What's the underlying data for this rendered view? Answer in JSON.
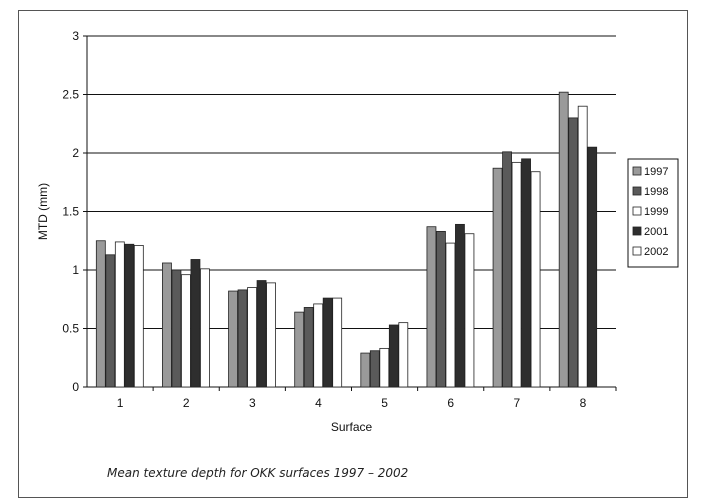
{
  "caption": "Mean texture depth for OKK surfaces 1997 – 2002",
  "chart_data": {
    "type": "bar",
    "title": "",
    "xlabel": "Surface",
    "ylabel": "MTD (mm)",
    "ylim": [
      0,
      3
    ],
    "yticks": [
      "0",
      "0.5",
      "1",
      "1.5",
      "2",
      "2.5",
      "3"
    ],
    "grid": true,
    "legend_position": "right",
    "categories": [
      "1",
      "2",
      "3",
      "4",
      "5",
      "6",
      "7",
      "8"
    ],
    "series": [
      {
        "name": "1997",
        "color": "#9a9a9a",
        "values": [
          1.25,
          1.06,
          0.82,
          0.64,
          0.29,
          1.37,
          1.87,
          2.52
        ]
      },
      {
        "name": "1998",
        "color": "#5a5a5a",
        "values": [
          1.13,
          1.0,
          0.83,
          0.68,
          0.31,
          1.33,
          2.01,
          2.3
        ]
      },
      {
        "name": "1999",
        "color": "#ffffff",
        "values": [
          1.24,
          0.96,
          0.85,
          0.71,
          0.33,
          1.23,
          1.92,
          2.4
        ]
      },
      {
        "name": "2001",
        "color": "#2e2e2e",
        "values": [
          1.22,
          1.09,
          0.91,
          0.76,
          0.53,
          1.39,
          1.95,
          2.05
        ]
      },
      {
        "name": "2002",
        "color": "#ffffff",
        "values": [
          1.21,
          1.01,
          0.89,
          0.76,
          0.55,
          1.31,
          1.84,
          0
        ]
      }
    ]
  }
}
